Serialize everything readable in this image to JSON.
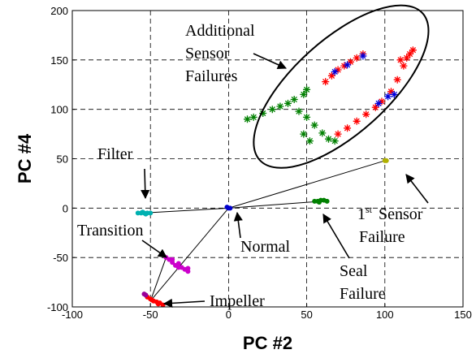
{
  "chart_data": {
    "type": "scatter",
    "title": "",
    "xlabel": "PC #2",
    "ylabel": "PC #4",
    "xlim": [
      -100,
      150
    ],
    "ylim": [
      -100,
      200
    ],
    "xticks": [
      -100,
      -50,
      0,
      50,
      100,
      150
    ],
    "yticks": [
      -100,
      -50,
      0,
      50,
      100,
      150,
      200
    ],
    "grid": "dashed",
    "legend": "none",
    "series": [
      {
        "color": "#0000cc",
        "marker": "dot",
        "points": [
          [
            0,
            0
          ],
          [
            1,
            0
          ],
          [
            -1,
            1
          ]
        ]
      },
      {
        "color": "#00b0b0",
        "marker": "dot",
        "points": [
          [
            -58,
            -5
          ],
          [
            -56,
            -5
          ],
          [
            -54,
            -5
          ],
          [
            -52,
            -5
          ],
          [
            -50,
            -5
          ],
          [
            -55,
            -4
          ],
          [
            -53,
            -6
          ]
        ]
      },
      {
        "color": "#cc00cc",
        "marker": "dot",
        "points": [
          [
            -40,
            -50
          ],
          [
            -38,
            -52
          ],
          [
            -36,
            -55
          ],
          [
            -34,
            -58
          ],
          [
            -32,
            -56
          ],
          [
            -30,
            -60
          ],
          [
            -28,
            -62
          ],
          [
            -26,
            -61
          ],
          [
            -26,
            -64
          ],
          [
            -36,
            -52
          ],
          [
            -32,
            -60
          ]
        ]
      },
      {
        "color": "#ff0000",
        "marker": "dot",
        "points": [
          [
            -52,
            -90
          ],
          [
            -50,
            -92
          ],
          [
            -48,
            -94
          ],
          [
            -46,
            -95
          ],
          [
            -44,
            -96
          ],
          [
            -42,
            -98
          ],
          [
            -45,
            -97
          ],
          [
            -49,
            -93
          ]
        ]
      },
      {
        "color": "#990099",
        "marker": "dot",
        "points": [
          [
            -54,
            -87
          ],
          [
            -53,
            -88
          ]
        ]
      },
      {
        "color": "#008000",
        "marker": "dot",
        "points": [
          [
            55,
            7
          ],
          [
            57,
            7
          ],
          [
            59,
            8
          ],
          [
            61,
            8
          ],
          [
            63,
            7
          ],
          [
            58,
            6
          ]
        ]
      },
      {
        "color": "#b0b000",
        "marker": "dot",
        "points": [
          [
            100,
            48
          ],
          [
            101,
            48
          ]
        ]
      },
      {
        "color": "#ff0000",
        "marker": "star",
        "points": [
          [
            62,
            128
          ],
          [
            66,
            134
          ],
          [
            70,
            140
          ],
          [
            74,
            144
          ],
          [
            78,
            148
          ],
          [
            82,
            152
          ],
          [
            86,
            156
          ],
          [
            70,
            75
          ],
          [
            76,
            81
          ],
          [
            82,
            88
          ],
          [
            88,
            95
          ],
          [
            94,
            102
          ],
          [
            98,
            108
          ],
          [
            104,
            118
          ],
          [
            108,
            130
          ],
          [
            112,
            144
          ],
          [
            116,
            156
          ],
          [
            118,
            160
          ],
          [
            110,
            150
          ],
          [
            114,
            152
          ]
        ]
      },
      {
        "color": "#0000dd",
        "marker": "star",
        "points": [
          [
            68,
            138
          ],
          [
            76,
            145
          ],
          [
            86,
            154
          ],
          [
            96,
            106
          ],
          [
            102,
            113
          ],
          [
            106,
            115
          ]
        ]
      },
      {
        "color": "#008000",
        "marker": "star",
        "points": [
          [
            12,
            90
          ],
          [
            16,
            92
          ],
          [
            22,
            96
          ],
          [
            28,
            100
          ],
          [
            33,
            103
          ],
          [
            38,
            106
          ],
          [
            42,
            110
          ],
          [
            48,
            115
          ],
          [
            50,
            120
          ],
          [
            45,
            98
          ],
          [
            50,
            92
          ],
          [
            55,
            84
          ],
          [
            60,
            76
          ],
          [
            64,
            70
          ],
          [
            68,
            68
          ],
          [
            48,
            75
          ],
          [
            52,
            68
          ]
        ]
      }
    ],
    "lines": [
      [
        [
          0,
          0
        ],
        [
          -55,
          -5
        ]
      ],
      [
        [
          0,
          0
        ],
        [
          100,
          48
        ]
      ],
      [
        [
          0,
          0
        ],
        [
          -50,
          -94
        ]
      ],
      [
        [
          -50,
          -94
        ],
        [
          -40,
          -50
        ]
      ],
      [
        [
          0,
          0
        ],
        [
          60,
          7
        ]
      ]
    ],
    "annotations": [
      {
        "lines": [
          "Additional",
          "Sensor",
          "Failures"
        ]
      },
      {
        "lines": [
          "Filter"
        ]
      },
      {
        "lines": [
          "Transition"
        ]
      },
      {
        "lines": [
          "Normal"
        ]
      },
      {
        "lines": [
          "Impeller"
        ]
      },
      {
        "lines": [
          "Seal",
          "Failure"
        ]
      },
      {
        "lines": [
          "1",
          "st",
          "Sensor",
          "Failure"
        ]
      }
    ]
  }
}
